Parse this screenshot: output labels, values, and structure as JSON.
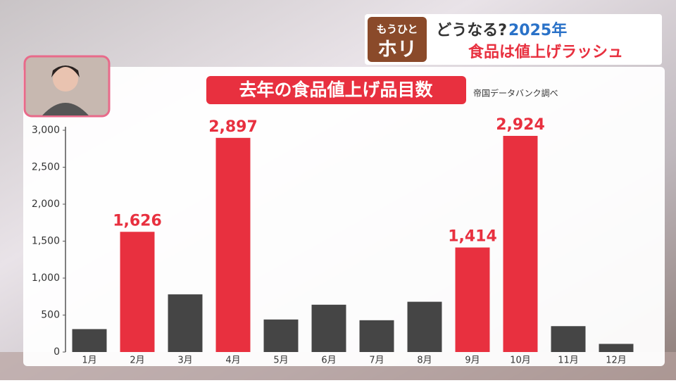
{
  "header": {
    "logo_top": "もうひと",
    "logo_bottom": "ホリ",
    "question": "どうなる?",
    "year": "2025年",
    "headline": "食品は値上げラッシュ"
  },
  "chart_data": {
    "type": "bar",
    "title": "去年の食品値上げ品目数",
    "source": "帝国データバンク調べ",
    "categories": [
      "1月",
      "2月",
      "3月",
      "4月",
      "5月",
      "6月",
      "7月",
      "8月",
      "9月",
      "10月",
      "11月",
      "12月"
    ],
    "values": [
      310,
      1626,
      780,
      2897,
      440,
      640,
      430,
      680,
      1414,
      2924,
      350,
      110
    ],
    "value_labels": [
      null,
      "1,626",
      null,
      "2,897",
      null,
      null,
      null,
      null,
      "1,414",
      "2,924",
      null,
      null
    ],
    "colors": [
      "#454545",
      "#e8303f",
      "#454545",
      "#e8303f",
      "#454545",
      "#454545",
      "#454545",
      "#454545",
      "#e8303f",
      "#e8303f",
      "#454545",
      "#454545"
    ],
    "ylim": [
      0,
      3000
    ],
    "yticks": [
      0,
      500,
      {
        "value": 1000,
        "label": "1,000"
      },
      {
        "value": 1500,
        "label": "1,500"
      },
      {
        "value": 2000,
        "label": "2,000"
      },
      {
        "value": 2500,
        "label": "2,500"
      },
      {
        "value": 3000,
        "label": "3,000"
      }
    ],
    "grid": false
  }
}
